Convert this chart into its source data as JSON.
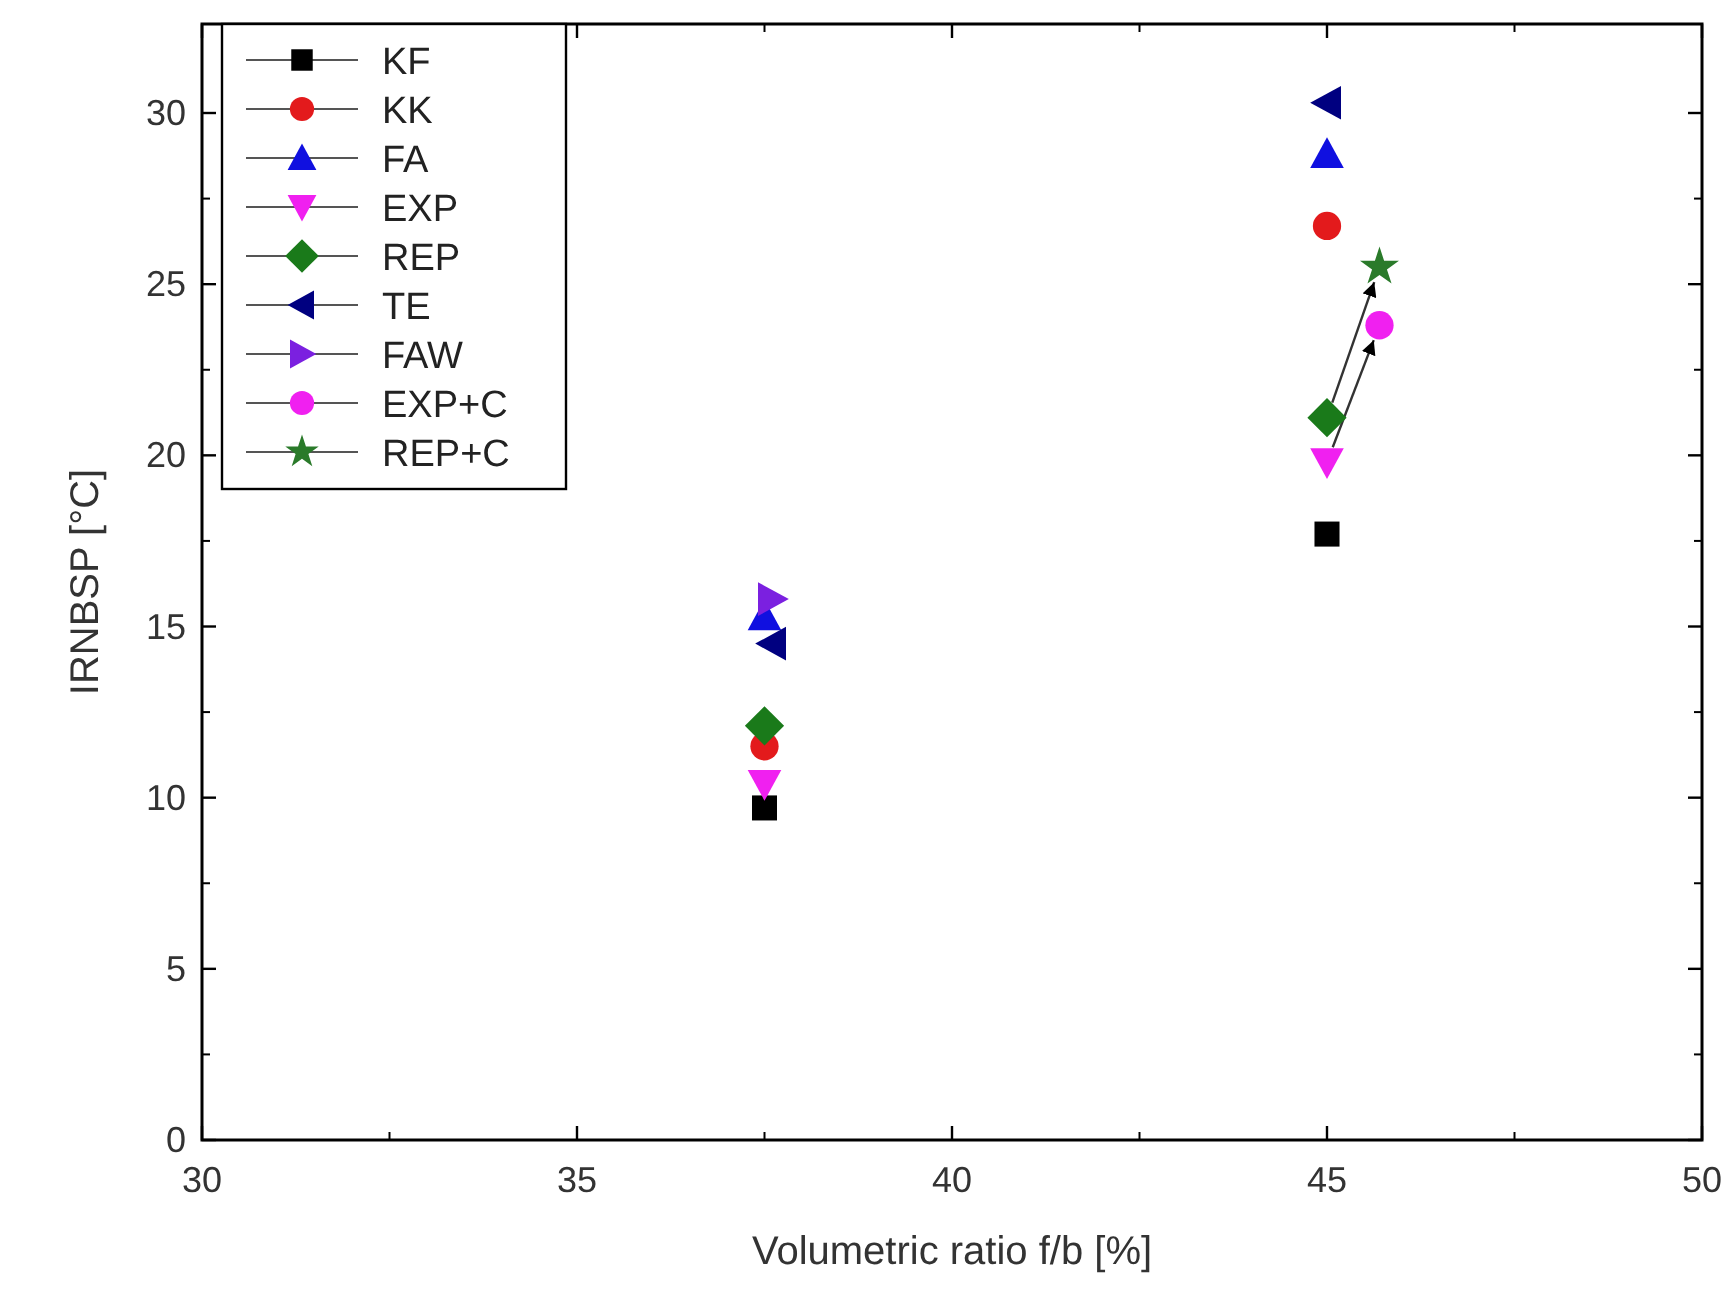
{
  "chart_data": {
    "type": "scatter",
    "xlabel": "Volumetric ratio f/b [%]",
    "ylabel": "IRNBSP [°C]",
    "xlim": [
      30,
      50
    ],
    "xticks": [
      30,
      35,
      40,
      45,
      50
    ],
    "ylim": [
      0,
      32.6
    ],
    "yticks": [
      0,
      5,
      10,
      15,
      20,
      25,
      30
    ],
    "grid": false,
    "legend": "top left",
    "series": [
      {
        "name": "KF",
        "color": "#000000",
        "marker": "square",
        "x": [
          37.5,
          45
        ],
        "values": [
          9.7,
          17.7
        ]
      },
      {
        "name": "KK",
        "color": "#e31a1c",
        "marker": "circle",
        "x": [
          37.5,
          45
        ],
        "values": [
          11.5,
          26.7
        ]
      },
      {
        "name": "FA",
        "color": "#1010e0",
        "marker": "triangle",
        "x": [
          37.5,
          45
        ],
        "values": [
          15.3,
          28.8
        ]
      },
      {
        "name": "EXP",
        "color": "#f020f0",
        "marker": "triangle-down",
        "x": [
          37.5,
          45
        ],
        "values": [
          10.4,
          19.8
        ]
      },
      {
        "name": "REP",
        "color": "#1a7a1a",
        "marker": "diamond",
        "x": [
          37.5,
          45
        ],
        "values": [
          12.1,
          21.1
        ]
      },
      {
        "name": "TE",
        "color": "#000080",
        "marker": "triangle-left",
        "x": [
          37.6,
          45
        ],
        "values": [
          14.5,
          30.3
        ]
      },
      {
        "name": "FAW",
        "color": "#7b20e0",
        "marker": "triangle-right",
        "x": [
          37.6
        ],
        "values": [
          15.8
        ]
      },
      {
        "name": "EXP+C",
        "color": "#f020f0",
        "marker": "circle",
        "x": [
          45.7
        ],
        "values": [
          23.8
        ]
      },
      {
        "name": "REP+C",
        "color": "#2a7a2a",
        "marker": "star",
        "x": [
          45.7
        ],
        "values": [
          25.5
        ]
      }
    ]
  }
}
